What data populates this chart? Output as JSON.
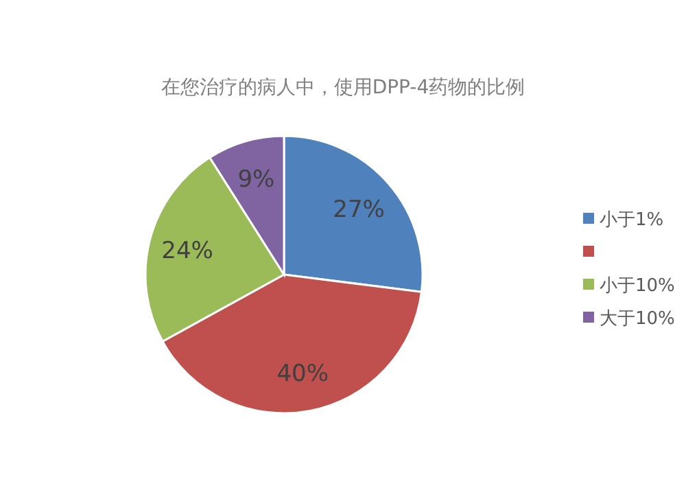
{
  "chart_data": {
    "type": "pie",
    "title": "在您治疗的病人中，使用DPP-4药物的比例",
    "categories": [
      "小于1%",
      null,
      "小于10%",
      "大于10%"
    ],
    "values": [
      27,
      40,
      24,
      9
    ],
    "colors": [
      "#4f81bd",
      "#c0504d",
      "#9bbb59",
      "#8064a2"
    ],
    "value_labels": [
      "27%",
      "40%",
      "24%",
      "9%"
    ],
    "legend": "right"
  }
}
